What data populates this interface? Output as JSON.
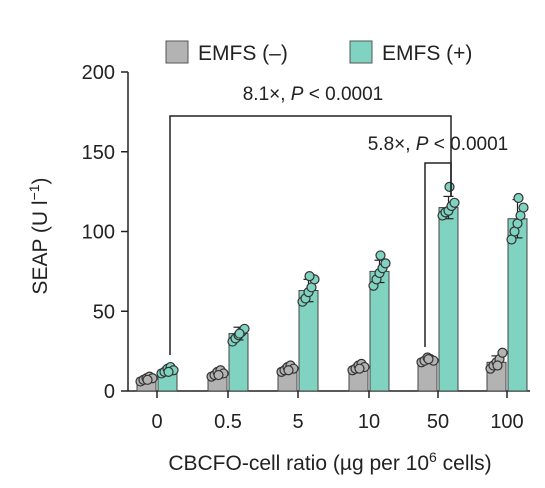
{
  "chart_data": {
    "type": "bar",
    "categories": [
      "0",
      "0.5",
      "5",
      "10",
      "50",
      "100"
    ],
    "xlabel": "CBCFO-cell ratio (µg per 10⁶ cells)",
    "xlabel_main": "CBCFO-cell ratio (µg per 10",
    "xlabel_sup": "6",
    "xlabel_tail": " cells)",
    "ylabel": "SEAP (U l⁻¹)",
    "ylabel_main": "SEAP (U l",
    "ylabel_sup": "−1",
    "ylabel_tail": ")",
    "ylim": [
      0,
      200
    ],
    "yticks": [
      0,
      50,
      100,
      150,
      200
    ],
    "legend_position": "top",
    "series": [
      {
        "name": "EMFS (–)",
        "color": "#b3b3b3",
        "values": [
          8,
          11,
          14,
          15,
          20,
          18
        ],
        "errors": [
          1.5,
          2,
          2,
          2,
          1.5,
          4
        ],
        "points": [
          [
            6,
            7,
            8,
            9,
            8,
            7
          ],
          [
            9,
            10,
            12,
            13,
            11,
            10
          ],
          [
            12,
            13,
            15,
            16,
            14,
            13
          ],
          [
            13,
            14,
            16,
            17,
            15,
            14
          ],
          [
            18,
            19,
            21,
            20,
            19,
            20
          ],
          [
            14,
            16,
            18,
            20,
            24,
            16
          ]
        ]
      },
      {
        "name": "EMFS (+)",
        "color": "#7fd3c0",
        "values": [
          13,
          36,
          63,
          75,
          115,
          108
        ],
        "errors": [
          2,
          4,
          7,
          7,
          7,
          12
        ],
        "points": [
          [
            11,
            12,
            14,
            15,
            13,
            12
          ],
          [
            31,
            33,
            35,
            37,
            39,
            36
          ],
          [
            56,
            58,
            62,
            65,
            70,
            72
          ],
          [
            66,
            70,
            74,
            77,
            80,
            85
          ],
          [
            110,
            112,
            113,
            116,
            118,
            128
          ],
          [
            95,
            100,
            105,
            110,
            115,
            121
          ]
        ]
      }
    ],
    "annotations": [
      {
        "text_pre": "8.1×, ",
        "text_p": "P",
        "text_post": " < 0.0001",
        "from": "0",
        "to": "50"
      },
      {
        "text_pre": "5.8×, ",
        "text_p": "P",
        "text_post": " < 0.0001",
        "from": "50",
        "to": "50"
      }
    ]
  }
}
